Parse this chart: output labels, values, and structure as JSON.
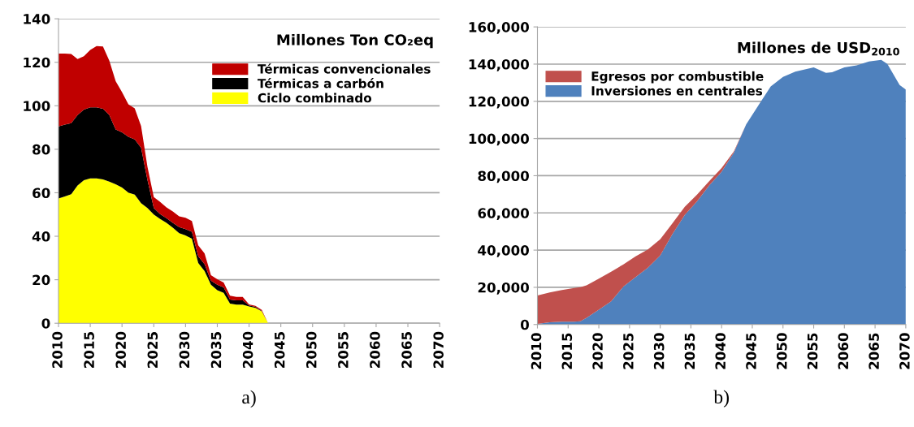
{
  "chart_data": [
    {
      "type": "area",
      "stacked": true,
      "title": "Millones Ton CO₂eq",
      "legend": "top right",
      "grid": "y",
      "annotations": [
        "a)"
      ],
      "x": [
        2010,
        2011,
        2012,
        2013,
        2014,
        2015,
        2016,
        2017,
        2018,
        2019,
        2020,
        2021,
        2022,
        2023,
        2024,
        2025,
        2026,
        2027,
        2028,
        2029,
        2030,
        2031,
        2032,
        2033,
        2034,
        2035,
        2036,
        2037,
        2038,
        2039,
        2040,
        2041,
        2042,
        2043
      ],
      "xlim": [
        2010,
        2070
      ],
      "xticks": [
        2010,
        2015,
        2020,
        2025,
        2030,
        2035,
        2040,
        2045,
        2050,
        2055,
        2060,
        2065,
        2070
      ],
      "ylim": [
        0,
        140
      ],
      "yticks": [
        0,
        20,
        40,
        60,
        80,
        100,
        120,
        140
      ],
      "series": [
        {
          "name": "Ciclo combinado",
          "color": "#ffff00",
          "values": [
            57.4,
            58.3,
            59.3,
            63.3,
            65.8,
            66.6,
            66.6,
            66.1,
            65.1,
            63.9,
            62.4,
            60.1,
            59.1,
            55.2,
            53,
            50,
            47.9,
            46.2,
            43.9,
            41.4,
            40.4,
            38.9,
            27.7,
            24,
            17.7,
            15.2,
            14,
            9,
            8.6,
            8.6,
            7.7,
            7.1,
            5.5,
            0
          ]
        },
        {
          "name": "Térmicas a carbón",
          "color": "#000000",
          "values": [
            33.1,
            33,
            32.7,
            32.4,
            32.4,
            32.7,
            32.7,
            32.5,
            30.6,
            25.2,
            25.4,
            25.6,
            25.4,
            25.5,
            13,
            3,
            2.3,
            2.1,
            2.3,
            2.8,
            2.9,
            3.2,
            3.1,
            3.1,
            1.9,
            2.5,
            2.5,
            1.9,
            1.9,
            1.9,
            0.5,
            0.4,
            0.2,
            0
          ]
        },
        {
          "name": "Térmicas convencionales",
          "color": "#c00000",
          "values": [
            33.5,
            32.7,
            31.8,
            25.8,
            24.6,
            26.4,
            28.2,
            28.7,
            25,
            22.2,
            18.5,
            15,
            14.3,
            10,
            6,
            5,
            5.6,
            5,
            5.2,
            5,
            5.2,
            4.9,
            5,
            5,
            2.5,
            2.5,
            2.2,
            1.8,
            1.6,
            1.6,
            0.5,
            0.5,
            0.4,
            0
          ]
        }
      ]
    },
    {
      "type": "area",
      "stacked": true,
      "title": "Millones de USD$_{2010}$",
      "legend": "top left",
      "grid": "y",
      "annotations": [
        "b)"
      ],
      "x": [
        2010,
        2012,
        2014,
        2016,
        2017,
        2018,
        2020,
        2022,
        2024,
        2026,
        2028,
        2030,
        2032,
        2034,
        2036,
        2038,
        2040,
        2042,
        2044,
        2046,
        2048,
        2050,
        2052,
        2054,
        2055,
        2057,
        2058,
        2060,
        2062,
        2064,
        2066,
        2067,
        2069,
        2070
      ],
      "xlim": [
        2010,
        2070
      ],
      "xticks": [
        2010,
        2015,
        2020,
        2025,
        2030,
        2035,
        2040,
        2045,
        2050,
        2055,
        2060,
        2065,
        2070
      ],
      "ylim": [
        0,
        160000
      ],
      "yticks": [
        0,
        {
          "value": 20000,
          "label": "20,000"
        },
        {
          "value": 40000,
          "label": "40,000"
        },
        {
          "value": 60000,
          "label": "60,000"
        },
        {
          "value": 80000,
          "label": "80,000"
        },
        {
          "value": 100000,
          "label": "100,000"
        },
        {
          "value": 120000,
          "label": "120,000"
        },
        {
          "value": 140000,
          "label": "140,000"
        },
        {
          "value": 160000,
          "label": "160,000"
        }
      ],
      "series": [
        {
          "name": "Inversiones en centrales",
          "color": "#4f81bd",
          "values": [
            300,
            1200,
            1500,
            1500,
            1700,
            3600,
            8000,
            12400,
            20400,
            25500,
            30500,
            37100,
            48700,
            58900,
            66200,
            74900,
            82200,
            92400,
            107600,
            117800,
            128000,
            133100,
            136000,
            137500,
            138200,
            135300,
            135600,
            138200,
            139300,
            141400,
            142300,
            140100,
            128700,
            126300
          ]
        },
        {
          "name": "Egresos por combustible",
          "color": "#c0504d",
          "values": [
            15300,
            16000,
            17100,
            18100,
            18400,
            17500,
            16700,
            16000,
            11900,
            11200,
            9900,
            8700,
            5800,
            4400,
            3600,
            2200,
            1900,
            700,
            0,
            null,
            null,
            null,
            null,
            null,
            null,
            null,
            null,
            null,
            null,
            null,
            null,
            null,
            null,
            null
          ]
        }
      ]
    }
  ]
}
